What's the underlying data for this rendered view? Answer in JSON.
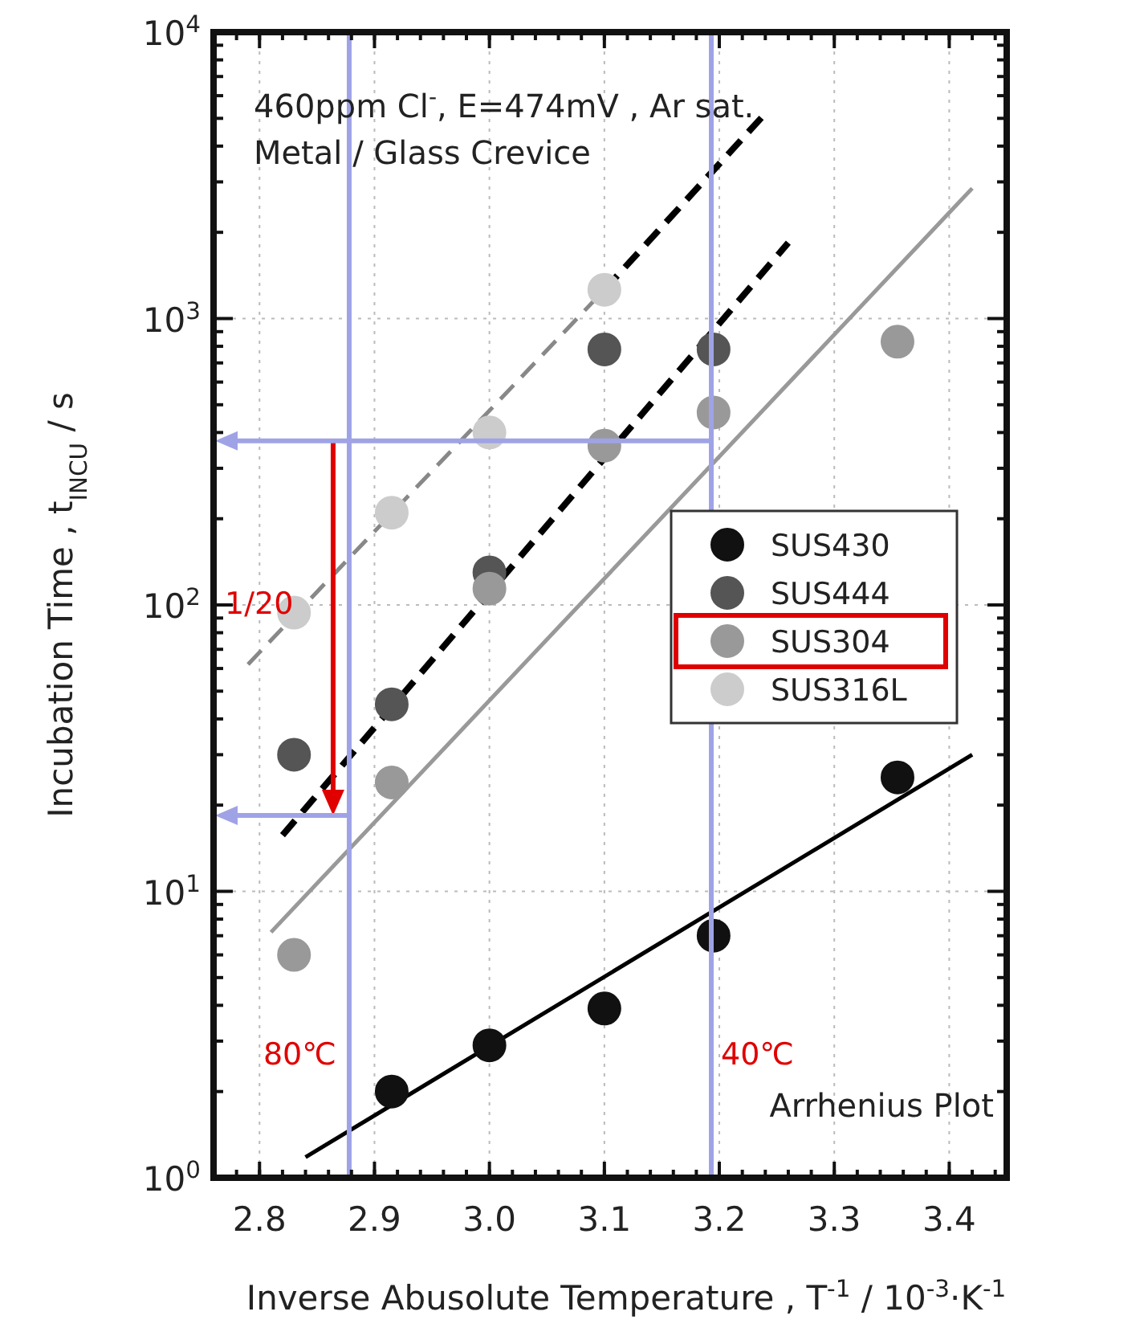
{
  "chart_data": {
    "type": "scatter",
    "xlabel": "Inverse Abusolute Temperature , T$^{-1}$ / 10$^{-3}$·K$^{-1}$",
    "ylabel": "Incubation Time , t$_{INCU}$ / s",
    "annotations": [
      "460ppm Cl$^{-}$, E=474mV , Ar sat.",
      "Metal / Glass Crevice",
      "Arrhenius Plot",
      "1/20"
    ],
    "xlim": [
      2.76,
      3.45
    ],
    "xticks": [
      2.8,
      2.9,
      {
        "value": 3.0,
        "label": "3.0"
      },
      3.1,
      3.2,
      3.3,
      3.4
    ],
    "ylim": [
      1,
      10000
    ],
    "log": "y",
    "yticks": [
      {
        "value": 1,
        "label": "10$^{0}$"
      },
      {
        "value": 10,
        "label": "10$^{1}$"
      },
      {
        "value": 100,
        "label": "10$^{2}$"
      },
      {
        "value": 1000,
        "label": "10$^{3}$"
      },
      {
        "value": 10000,
        "label": "10$^{4}$"
      }
    ],
    "grid": true,
    "legend": "right",
    "ref_lines": [
      {
        "axis": "x",
        "value": 2.878,
        "label": "80℃",
        "color": "#9fa3e6"
      },
      {
        "axis": "x",
        "value": 3.193,
        "label": "40℃",
        "color": "#9fa3e6"
      },
      {
        "axis": "y",
        "value": 374,
        "color": "#9fa3e6"
      },
      {
        "axis": "y",
        "value": 18.4,
        "color": "#9fa3e6"
      }
    ],
    "series": [
      {
        "marker": "circle",
        "name": "SUS430",
        "color": "#111111",
        "x": [
          2.915,
          3.0,
          3.1,
          3.195,
          3.355
        ],
        "values": [
          2.0,
          2.9,
          3.9,
          7.0,
          25
        ]
      },
      {
        "marker": "circle",
        "name": "SUS444",
        "color": "#555555",
        "x": [
          2.83,
          2.915,
          3.0,
          3.1,
          3.195
        ],
        "values": [
          30,
          45,
          130,
          780,
          780
        ]
      },
      {
        "marker": "circle",
        "name": "SUS304",
        "color": "#999999",
        "x": [
          2.83,
          2.915,
          3.0,
          3.1,
          3.195,
          3.355
        ],
        "values": [
          6.0,
          24,
          114,
          360,
          470,
          830
        ]
      },
      {
        "marker": "circle",
        "name": "SUS316L",
        "color": "#cccccc",
        "x": [
          2.83,
          2.915,
          3.0,
          3.1
        ],
        "values": [
          94,
          210,
          400,
          1260
        ]
      },
      {
        "type": "line",
        "color": "#000000",
        "line_style": "solid",
        "x": [
          2.84,
          3.42
        ],
        "values": [
          1.18,
          30
        ]
      },
      {
        "type": "line",
        "color": "#000000",
        "line_style": "dashed",
        "x": [
          2.82,
          3.26
        ],
        "values": [
          15.7,
          1840
        ]
      },
      {
        "type": "line",
        "color": "#999999",
        "line_style": "solid",
        "x": [
          2.81,
          3.42
        ],
        "values": [
          7.2,
          2850
        ]
      },
      {
        "type": "line",
        "color": "#888888",
        "line_style": "dashed",
        "x": [
          2.79,
          3.1
        ],
        "values": [
          62,
          1260
        ]
      },
      {
        "type": "line",
        "color": "#000000",
        "line_style": "dashed",
        "x": [
          3.1,
          3.24
        ],
        "values": [
          1260,
          5200
        ]
      }
    ]
  }
}
